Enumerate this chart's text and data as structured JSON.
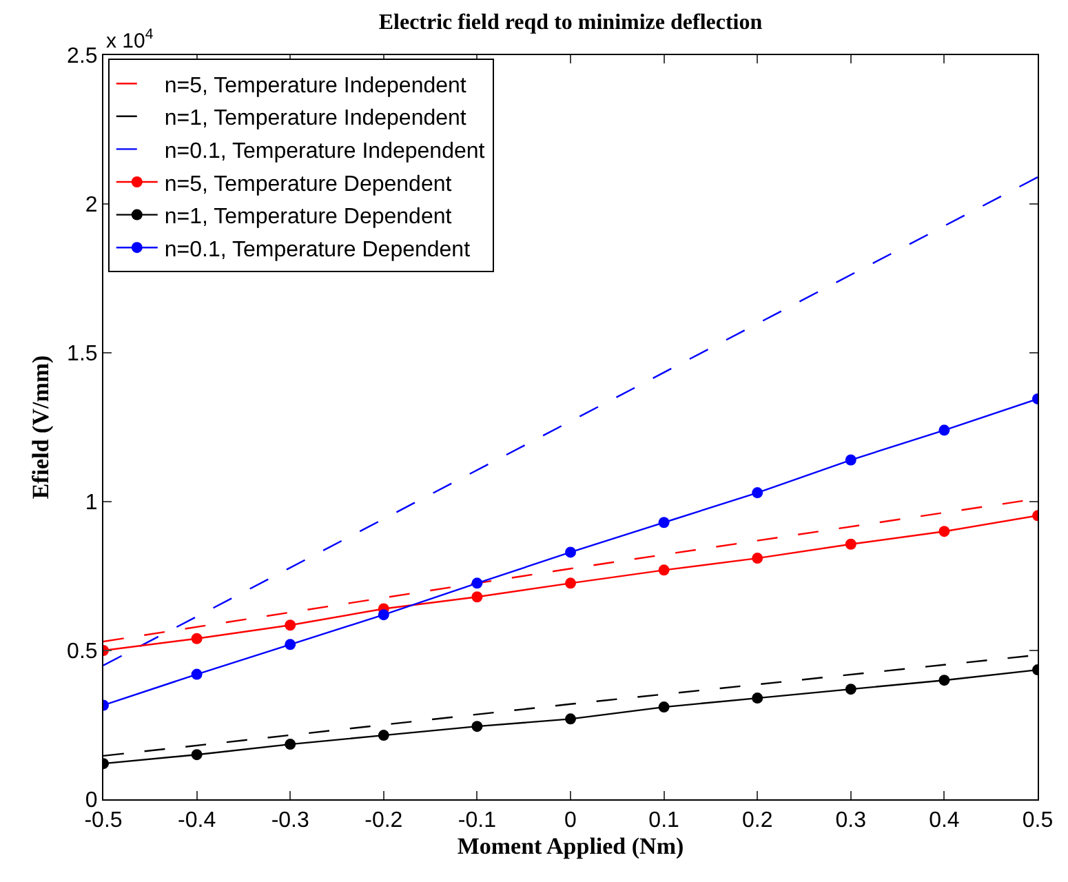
{
  "chart_data": {
    "type": "line",
    "title": "Electric field reqd to minimize deflection",
    "xlabel": "Moment Applied (Nm)",
    "ylabel": "Efield (V/mm)",
    "annotations": [
      "x 10$^{4}$"
    ],
    "xlim": [
      -0.5,
      0.5
    ],
    "xticks": [
      -0.5,
      -0.4,
      -0.3,
      -0.2,
      -0.1,
      0,
      0.1,
      0.2,
      0.3,
      0.4,
      0.5
    ],
    "ylim": [
      0,
      2.5
    ],
    "yticks": [
      0,
      0.5,
      1,
      1.5,
      2,
      2.5
    ],
    "legend": "top left",
    "series": [
      {
        "name": "n=5, Temperature Independent",
        "color": "#ff0000",
        "line_style": "dashed",
        "marker": "none",
        "x": [
          -0.5,
          0,
          0.5
        ],
        "values": [
          0.53,
          0.775,
          1.01
        ]
      },
      {
        "name": "n=1, Temperature Independent",
        "color": "#000000",
        "line_style": "dashed",
        "marker": "none",
        "x": [
          -0.5,
          0,
          0.5
        ],
        "values": [
          0.146,
          0.32,
          0.485
        ]
      },
      {
        "name": "n=0.1, Temperature Independent",
        "color": "#0000ff",
        "line_style": "dashed",
        "marker": "none",
        "x": [
          -0.5,
          0,
          0.5
        ],
        "values": [
          0.45,
          1.27,
          2.09
        ]
      },
      {
        "name": "n=5, Temperature Dependent",
        "color": "#ff0000",
        "line_style": "solid",
        "marker": "circle",
        "x": [
          -0.5,
          -0.4,
          -0.3,
          -0.2,
          -0.1,
          0,
          0.1,
          0.2,
          0.3,
          0.4,
          0.5
        ],
        "values": [
          0.5,
          0.54,
          0.585,
          0.64,
          0.68,
          0.726,
          0.77,
          0.81,
          0.857,
          0.9,
          0.953
        ]
      },
      {
        "name": "n=1, Temperature Dependent",
        "color": "#000000",
        "line_style": "solid",
        "marker": "circle",
        "x": [
          -0.5,
          -0.4,
          -0.3,
          -0.2,
          -0.1,
          0,
          0.1,
          0.2,
          0.3,
          0.4,
          0.5
        ],
        "values": [
          0.12,
          0.15,
          0.185,
          0.215,
          0.245,
          0.27,
          0.31,
          0.34,
          0.37,
          0.4,
          0.435
        ]
      },
      {
        "name": "n=0.1, Temperature Dependent",
        "color": "#0000ff",
        "line_style": "solid",
        "marker": "circle",
        "x": [
          -0.5,
          -0.4,
          -0.3,
          -0.2,
          -0.1,
          0,
          0.1,
          0.2,
          0.3,
          0.4,
          0.5
        ],
        "values": [
          0.316,
          0.42,
          0.52,
          0.62,
          0.726,
          0.83,
          0.93,
          1.03,
          1.14,
          1.24,
          1.345
        ]
      }
    ]
  }
}
